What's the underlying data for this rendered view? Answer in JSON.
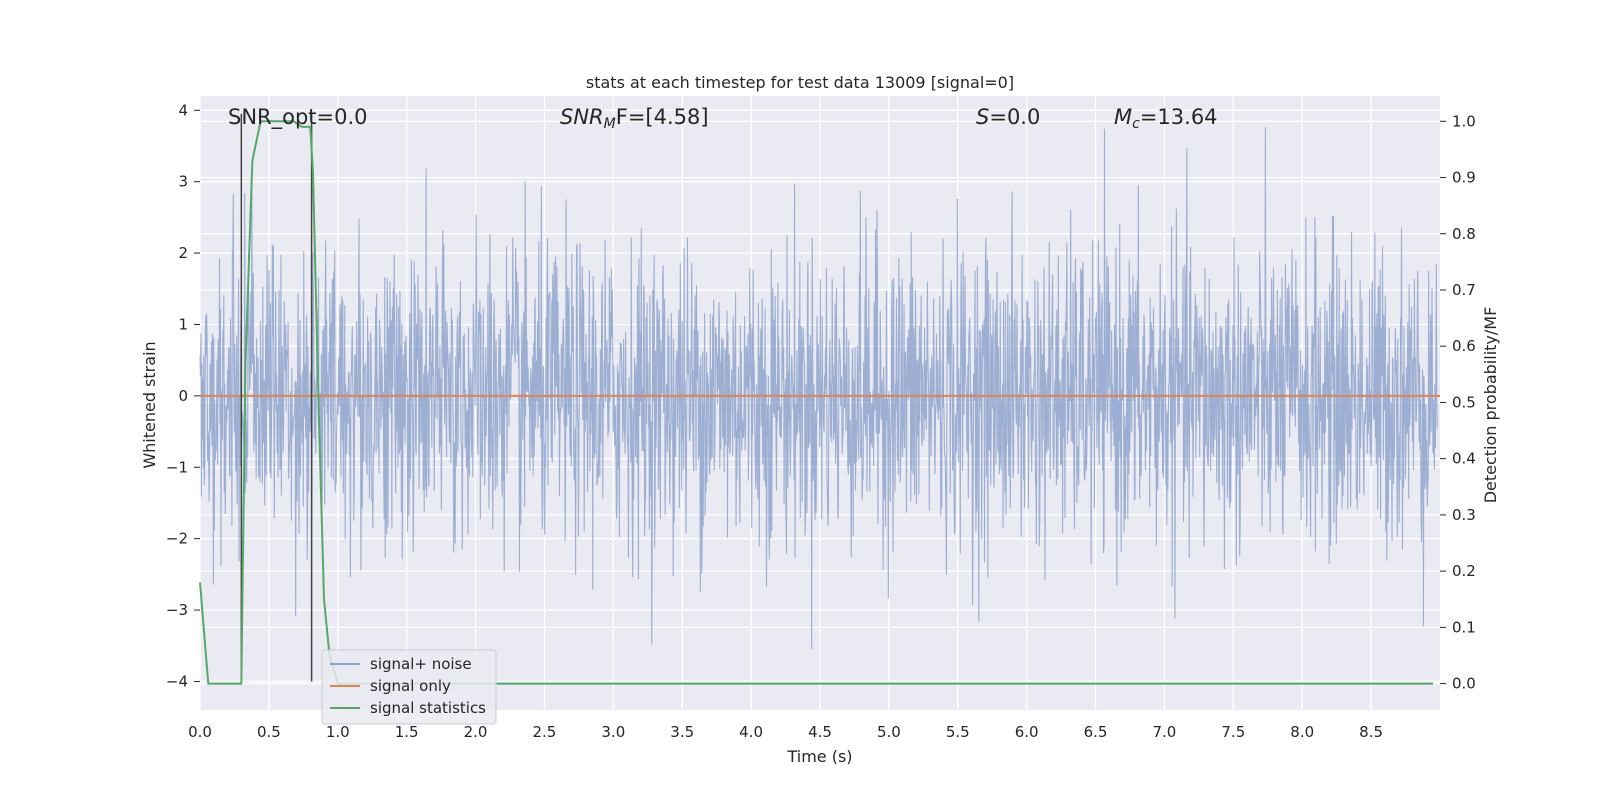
{
  "chart_data": {
    "type": "line",
    "title": "stats at each timestep for test data 13009 [signal=0]",
    "xlabel": "Time (s)",
    "ylabel": "Whitened strain",
    "ylabel_right": "Detection probability/MF",
    "xlim": [
      0.0,
      9.0
    ],
    "ylim": [
      -4.4,
      4.2
    ],
    "ylim_right": [
      -0.047,
      1.045
    ],
    "x_ticks": [
      "0.0",
      "0.5",
      "1.0",
      "1.5",
      "2.0",
      "2.5",
      "3.0",
      "3.5",
      "4.0",
      "4.5",
      "5.0",
      "5.5",
      "6.0",
      "6.5",
      "7.0",
      "7.5",
      "8.0",
      "8.5"
    ],
    "y_ticks": [
      "−4",
      "−3",
      "−2",
      "−1",
      "0",
      "1",
      "2",
      "3",
      "4"
    ],
    "y_ticks_right": [
      "0.0",
      "0.1",
      "0.2",
      "0.3",
      "0.4",
      "0.5",
      "0.6",
      "0.7",
      "0.8",
      "0.9",
      "1.0"
    ],
    "grid": true,
    "legend_position": "lower-left",
    "annotations": {
      "snr_opt": "SNR_opt=0.0",
      "snr_mf_sym": "SNR",
      "snr_mf_sub": "M",
      "snr_mf_tail": "F=[4.58]",
      "s_sym": "S",
      "s_tail": "=0.0",
      "mc_sym": "M",
      "mc_sub": "c",
      "mc_tail": "=13.64"
    },
    "vertical_lines_x": [
      0.3,
      0.81
    ],
    "series": [
      {
        "name": "signal+ noise",
        "color": "#8ea3cc",
        "axis": "left",
        "description": "whitened noise, roughly within -2 to 2 with spikes up to about ±3.9"
      },
      {
        "name": "signal only",
        "color": "#dd8452",
        "axis": "left",
        "x": [
          0.0,
          9.0
        ],
        "y": [
          0.0,
          0.0
        ]
      },
      {
        "name": "signal statistics",
        "color": "#55a868",
        "axis": "right",
        "x": [
          0.0,
          0.06,
          0.12,
          0.18,
          0.24,
          0.3,
          0.33,
          0.38,
          0.44,
          0.5,
          0.56,
          0.62,
          0.68,
          0.74,
          0.8,
          0.82,
          0.86,
          0.9,
          0.94,
          1.0,
          1.2,
          2.0,
          3.0,
          4.0,
          5.0,
          6.0,
          7.0,
          8.0,
          8.95
        ],
        "y": [
          0.18,
          0.0,
          0.0,
          0.0,
          0.0,
          0.0,
          0.57,
          0.93,
          1.0,
          1.0,
          1.0,
          1.0,
          1.0,
          0.99,
          0.99,
          0.91,
          0.5,
          0.15,
          0.05,
          0.0,
          0.0,
          0.0,
          0.0,
          0.0,
          0.0,
          0.0,
          0.0,
          0.0,
          0.0
        ]
      }
    ]
  }
}
